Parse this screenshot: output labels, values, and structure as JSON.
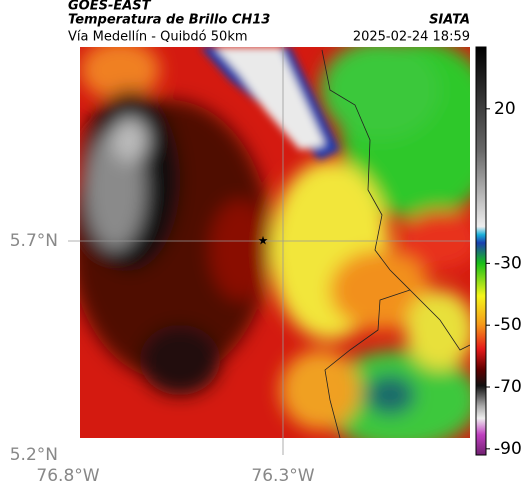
{
  "header": {
    "title": "GOES-EAST",
    "subtitle": "Temperatura de Brillo CH13",
    "route": "Vía Medellín - Quibdó 50km",
    "source": "SIATA",
    "datetime": "2025-02-24 18:59"
  },
  "map": {
    "lat_labels": [
      "5.7°N",
      "5.2°N"
    ],
    "lon_labels": [
      "76.8°W",
      "76.3°W"
    ]
  },
  "colorbar": {
    "range": [
      40,
      -92
    ],
    "ticks": [
      20,
      -30,
      -50,
      -70,
      -90
    ]
  }
}
